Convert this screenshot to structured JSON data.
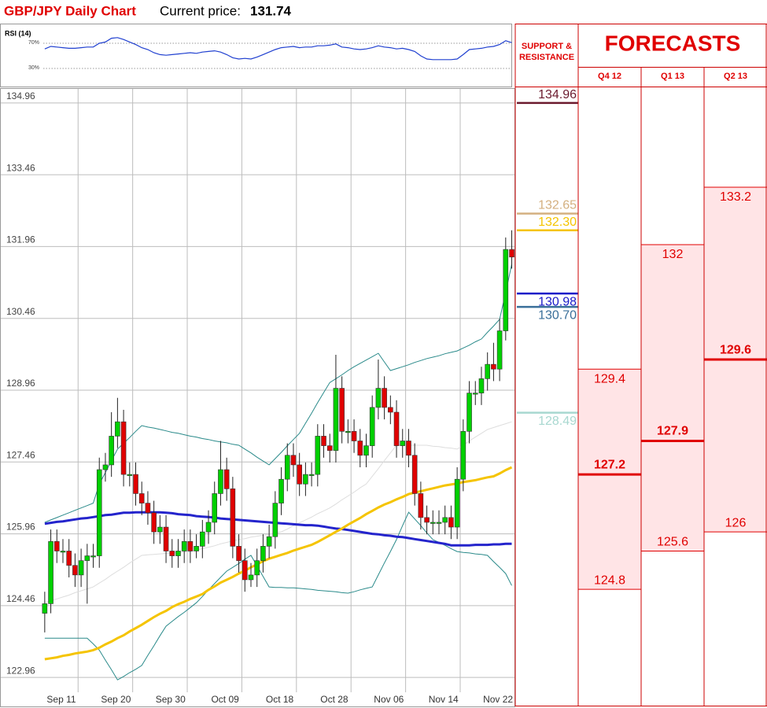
{
  "header": {
    "title": "GBP/JPY Daily Chart",
    "price_label": "Current price:",
    "price": 131.74
  },
  "chart_data": [
    {
      "type": "candlestick",
      "categories": [
        null,
        null,
        null,
        "Sep 11",
        null,
        null,
        null,
        null,
        null,
        null,
        null,
        null,
        "Sep 20",
        null,
        null,
        null,
        null,
        null,
        null,
        null,
        null,
        "Sep 30",
        null,
        null,
        null,
        null,
        null,
        null,
        null,
        null,
        "Oct 09",
        null,
        null,
        null,
        null,
        null,
        null,
        null,
        null,
        "Oct 18",
        null,
        null,
        null,
        null,
        null,
        null,
        null,
        null,
        "Oct 28",
        null,
        null,
        null,
        null,
        null,
        null,
        null,
        null,
        "Nov 06",
        null,
        null,
        null,
        null,
        null,
        null,
        null,
        null,
        "Nov 14",
        null,
        null,
        null,
        null,
        null,
        null,
        null,
        null,
        "Nov 22",
        null,
        null
      ],
      "open": [
        124.3,
        124.5,
        125.8,
        125.6,
        125.6,
        125.3,
        125.1,
        125.4,
        125.5,
        125.5,
        127.3,
        127.4,
        128.0,
        128.3,
        127.2,
        127.2,
        126.8,
        126.6,
        126.4,
        126.0,
        126.1,
        125.6,
        125.5,
        125.6,
        125.8,
        125.6,
        125.7,
        126.0,
        126.2,
        126.8,
        127.3,
        126.9,
        125.7,
        125.4,
        125.0,
        125.1,
        125.4,
        125.7,
        125.9,
        126.6,
        127.1,
        127.6,
        127.4,
        127.0,
        127.2,
        127.2,
        128.0,
        127.8,
        127.7,
        129.0,
        128.1,
        128.1,
        127.9,
        127.6,
        127.8,
        128.6,
        129.0,
        128.6,
        128.5,
        127.8,
        127.9,
        127.6,
        126.8,
        126.3,
        126.2,
        126.2,
        126.2,
        126.3,
        126.1,
        127.1,
        128.1,
        128.9,
        128.9,
        129.2,
        129.5,
        129.4,
        130.2,
        131.9
      ],
      "high": [
        124.75,
        126.05,
        126.05,
        125.85,
        125.85,
        125.55,
        125.65,
        125.75,
        125.75,
        127.55,
        127.65,
        128.5,
        128.8,
        128.55,
        127.45,
        127.45,
        127.05,
        126.85,
        126.65,
        126.35,
        126.35,
        125.85,
        125.85,
        126.05,
        126.05,
        125.95,
        126.25,
        126.45,
        127.05,
        127.9,
        127.55,
        127.15,
        125.95,
        125.65,
        125.35,
        125.65,
        125.95,
        126.15,
        126.85,
        127.35,
        127.85,
        127.85,
        127.65,
        127.45,
        127.45,
        128.25,
        128.25,
        128.05,
        129.7,
        129.25,
        128.35,
        128.35,
        128.15,
        128.05,
        128.85,
        129.6,
        129.25,
        128.85,
        128.75,
        128.15,
        128.15,
        127.85,
        127.05,
        126.55,
        126.45,
        126.45,
        126.55,
        126.55,
        127.35,
        128.35,
        129.15,
        129.15,
        129.45,
        129.75,
        129.95,
        130.45,
        132.15,
        132.3
      ],
      "low": [
        123.9,
        124.3,
        125.35,
        125.35,
        125.05,
        124.85,
        124.85,
        124.5,
        125.25,
        125.25,
        127.05,
        127.15,
        127.75,
        126.95,
        126.95,
        126.55,
        126.35,
        126.15,
        125.75,
        125.75,
        125.35,
        125.25,
        125.25,
        125.35,
        125.35,
        125.45,
        125.45,
        125.75,
        125.95,
        126.55,
        126.65,
        125.45,
        125.15,
        124.75,
        124.85,
        124.85,
        125.15,
        125.45,
        125.65,
        126.35,
        126.85,
        127.15,
        126.75,
        126.75,
        126.95,
        126.95,
        127.55,
        127.45,
        127.45,
        127.85,
        127.85,
        127.65,
        127.35,
        127.35,
        127.55,
        128.35,
        128.35,
        128.25,
        127.55,
        127.55,
        127.35,
        126.55,
        126.05,
        125.95,
        125.95,
        125.95,
        125.95,
        125.85,
        125.85,
        126.85,
        127.85,
        128.65,
        128.65,
        128.95,
        129.15,
        129.15,
        130.0,
        131.5
      ],
      "close": [
        124.5,
        125.8,
        125.6,
        125.6,
        125.3,
        125.1,
        125.4,
        125.5,
        125.5,
        127.3,
        127.4,
        128.0,
        128.3,
        127.2,
        127.2,
        126.8,
        126.6,
        126.4,
        126.0,
        126.1,
        125.6,
        125.5,
        125.6,
        125.8,
        125.6,
        125.7,
        126.0,
        126.2,
        126.8,
        127.3,
        126.9,
        125.7,
        125.4,
        125.0,
        125.1,
        125.4,
        125.7,
        125.9,
        126.6,
        127.1,
        127.6,
        127.4,
        127.0,
        127.2,
        127.2,
        128.0,
        127.8,
        127.7,
        129.0,
        128.1,
        128.1,
        127.9,
        127.6,
        127.8,
        128.6,
        129.0,
        128.6,
        128.5,
        127.8,
        127.9,
        127.6,
        126.8,
        126.3,
        126.2,
        126.2,
        126.2,
        126.3,
        126.1,
        127.1,
        128.1,
        128.9,
        128.9,
        129.2,
        129.5,
        129.4,
        130.2,
        131.9,
        131.74
      ],
      "color_up": "#00d000",
      "color_down": "#e00000",
      "lines": [
        {
          "color": "#dddddd",
          "width": 1,
          "values": [
            124.52,
            124.56,
            124.6,
            124.64,
            124.68,
            124.73,
            124.77,
            124.81,
            124.85,
            124.93,
            125.01,
            125.1,
            125.18,
            125.26,
            125.35,
            125.43,
            125.51,
            125.52,
            125.53,
            125.54,
            125.55,
            125.56,
            125.57,
            125.58,
            125.59,
            125.62,
            125.65,
            125.68,
            125.71,
            125.75,
            125.78,
            125.81,
            125.84,
            125.86,
            125.89,
            125.91,
            125.93,
            125.95,
            125.98,
            126.0,
            126.06,
            126.13,
            126.19,
            126.25,
            126.31,
            126.38,
            126.44,
            126.5,
            126.58,
            126.67,
            126.75,
            126.83,
            126.92,
            127.0,
            127.16,
            127.32,
            127.49,
            127.65,
            127.81,
            127.81,
            127.81,
            127.81,
            127.81,
            127.81,
            127.79,
            127.78,
            127.76,
            127.75,
            127.73,
            127.81,
            127.9,
            127.98,
            128.06,
            128.14,
            128.18,
            128.22,
            128.26,
            128.3
          ]
        },
        {
          "color": "#2a8a8a",
          "width": 1,
          "values": [
            126.2,
            126.25,
            126.3,
            126.35,
            126.4,
            126.45,
            126.5,
            126.55,
            126.6,
            127.0,
            127.24,
            127.49,
            127.73,
            127.85,
            127.97,
            128.1,
            128.22,
            128.19,
            128.17,
            128.14,
            128.11,
            128.08,
            128.06,
            128.03,
            128.0,
            127.98,
            127.95,
            127.93,
            127.9,
            127.88,
            127.86,
            127.83,
            127.81,
            127.73,
            127.65,
            127.56,
            127.48,
            127.4,
            127.53,
            127.66,
            127.8,
            127.93,
            128.06,
            128.27,
            128.48,
            128.7,
            128.91,
            129.12,
            129.2,
            129.28,
            129.37,
            129.45,
            129.52,
            129.59,
            129.66,
            129.73,
            129.55,
            129.37,
            129.41,
            129.45,
            129.49,
            129.54,
            129.58,
            129.62,
            129.65,
            129.68,
            129.72,
            129.75,
            129.78,
            129.84,
            129.9,
            129.97,
            130.03,
            130.17,
            130.3,
            130.44,
            131.0,
            131.59
          ]
        },
        {
          "color": "#2a8a8a",
          "width": 1,
          "values": [
            123.78,
            123.78,
            123.78,
            123.78,
            123.78,
            123.78,
            123.78,
            123.78,
            123.66,
            123.53,
            123.32,
            123.12,
            122.91,
            122.98,
            123.06,
            123.13,
            123.21,
            123.42,
            123.62,
            123.83,
            124.03,
            124.13,
            124.23,
            124.32,
            124.42,
            124.52,
            124.65,
            124.79,
            124.92,
            125.05,
            125.18,
            125.26,
            125.34,
            125.43,
            125.51,
            125.29,
            125.07,
            124.85,
            124.84,
            124.84,
            124.83,
            124.83,
            124.82,
            124.81,
            124.8,
            124.78,
            124.77,
            124.76,
            124.75,
            124.73,
            124.72,
            124.75,
            124.79,
            124.82,
            124.85,
            125.1,
            125.35,
            125.59,
            125.84,
            126.13,
            126.41,
            126.27,
            126.13,
            125.98,
            125.84,
            125.78,
            125.72,
            125.65,
            125.59,
            125.57,
            125.56,
            125.54,
            125.53,
            125.51,
            125.38,
            125.26,
            125.13,
            124.88
          ]
        },
        {
          "color": "#2424cc",
          "width": 3,
          "values": [
            126.17,
            126.19,
            126.21,
            126.22,
            126.24,
            126.26,
            126.28,
            126.29,
            126.31,
            126.33,
            126.35,
            126.36,
            126.38,
            126.4,
            126.4,
            126.41,
            126.41,
            126.41,
            126.41,
            126.41,
            126.4,
            126.39,
            126.37,
            126.36,
            126.35,
            126.33,
            126.32,
            126.31,
            126.3,
            126.28,
            126.27,
            126.26,
            126.25,
            126.24,
            126.23,
            126.22,
            126.21,
            126.2,
            126.19,
            126.18,
            126.17,
            126.16,
            126.15,
            126.14,
            126.14,
            126.13,
            126.11,
            126.09,
            126.07,
            126.06,
            126.04,
            126.02,
            126.0,
            125.98,
            125.96,
            125.95,
            125.93,
            125.92,
            125.9,
            125.89,
            125.87,
            125.85,
            125.83,
            125.81,
            125.79,
            125.77,
            125.75,
            125.72,
            125.72,
            125.72,
            125.72,
            125.73,
            125.73,
            125.73,
            125.74,
            125.74,
            125.75,
            125.75
          ]
        },
        {
          "color": "#f5c400",
          "width": 3,
          "values": [
            123.34,
            123.36,
            123.38,
            123.41,
            123.43,
            123.46,
            123.48,
            123.5,
            123.53,
            123.58,
            123.65,
            123.71,
            123.78,
            123.84,
            123.92,
            123.99,
            124.06,
            124.14,
            124.22,
            124.29,
            124.35,
            124.43,
            124.49,
            124.54,
            124.6,
            124.65,
            124.7,
            124.79,
            124.86,
            124.94,
            125.0,
            125.06,
            125.13,
            125.19,
            125.26,
            125.32,
            125.39,
            125.44,
            125.48,
            125.52,
            125.56,
            125.61,
            125.65,
            125.69,
            125.73,
            125.79,
            125.86,
            125.93,
            126.0,
            126.07,
            126.15,
            126.22,
            126.29,
            126.37,
            126.44,
            126.51,
            126.57,
            126.62,
            126.68,
            126.73,
            126.79,
            126.82,
            126.85,
            126.88,
            126.91,
            126.94,
            126.97,
            126.99,
            127.01,
            127.04,
            127.06,
            127.08,
            127.11,
            127.14,
            127.16,
            127.22,
            127.29,
            127.35
          ]
        }
      ],
      "ylim": [
        122.65,
        135.27
      ],
      "yticks": [
        122.96,
        124.46,
        125.96,
        127.46,
        128.96,
        130.46,
        131.96,
        133.46,
        134.96
      ],
      "grid": true
    },
    {
      "type": "line",
      "label": "RSI (14)",
      "color": "#2040d0",
      "values": [
        61,
        65,
        64,
        63,
        62,
        62,
        63,
        64,
        64,
        70,
        72,
        78,
        79,
        76,
        72,
        68,
        63,
        60,
        55,
        52,
        51,
        52,
        53,
        54,
        55,
        54,
        56,
        57,
        58,
        56,
        52,
        47,
        45,
        46,
        45,
        48,
        52,
        56,
        60,
        63,
        64,
        65,
        63,
        64,
        64,
        66,
        66,
        67,
        69,
        64,
        63,
        61,
        60,
        61,
        63,
        66,
        64,
        63,
        61,
        62,
        60,
        57,
        50,
        45,
        44,
        44,
        44,
        44,
        45,
        52,
        60,
        61,
        62,
        64,
        65,
        68,
        74,
        71
      ],
      "ylim": [
        7.5,
        95
      ],
      "yticks": [
        {
          "value": 30,
          "label": "30%"
        },
        {
          "value": 70,
          "label": "70%"
        }
      ]
    },
    {
      "type": "levels",
      "title": "SUPPORT & RESISTANCE",
      "values": [
        134.96,
        132.65,
        132.3,
        130.98,
        130.7,
        128.49
      ],
      "value_labels": [
        "134.96",
        "132.65",
        "132.30",
        "130.98",
        "130.70",
        "128.49"
      ],
      "colors": [
        "#6b1a2e",
        "#d4b080",
        "#f5c400",
        "#1a1ac8",
        "#3a6f9a",
        "#a8d8d0"
      ]
    },
    {
      "type": "forecast",
      "title": "FORECASTS",
      "categories": [
        "Q4 12",
        "Q1 13",
        "Q2 13"
      ],
      "high": [
        129.4,
        132,
        133.2
      ],
      "mid": [
        127.2,
        127.9,
        129.6
      ],
      "low": [
        124.8,
        125.6,
        126
      ],
      "band_color": "#ffe4e6",
      "line_color": "#e00000"
    }
  ]
}
